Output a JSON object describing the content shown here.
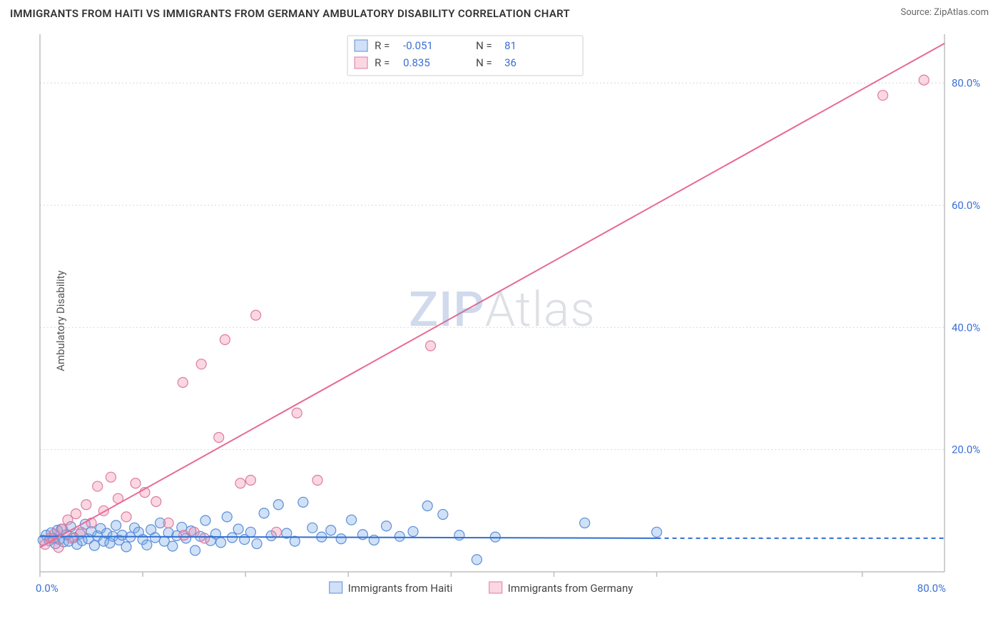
{
  "title": "IMMIGRANTS FROM HAITI VS IMMIGRANTS FROM GERMANY AMBULATORY DISABILITY CORRELATION CHART",
  "source": "Source: ZipAtlas.com",
  "ylabel": "Ambulatory Disability",
  "watermark": {
    "part1": "ZIP",
    "part2": "Atlas"
  },
  "chart": {
    "type": "scatter",
    "background_color": "#ffffff",
    "grid_color": "#d9d9d9",
    "xlim": [
      0,
      88
    ],
    "ylim": [
      0,
      88
    ],
    "x_ticks": [
      0,
      10,
      20,
      30,
      40,
      50,
      60,
      80
    ],
    "x_tick_labels": {
      "0": "0.0%",
      "80": "80.0%"
    },
    "y_ticks": [
      20,
      40,
      60,
      80
    ],
    "y_tick_labels": {
      "20": "20.0%",
      "40": "40.0%",
      "60": "60.0%",
      "80": "80.0%"
    },
    "marker_radius": 7,
    "marker_stroke_width": 1.2,
    "line_width": 2,
    "series": [
      {
        "id": "haiti",
        "label": "Immigrants from Haiti",
        "fill": "rgba(120,165,230,0.35)",
        "stroke": "#5a8fd8",
        "line_color": "#2f6fd0",
        "R": "-0.051",
        "N": "81",
        "trend": {
          "x1": 0,
          "y1": 5.8,
          "x2": 60,
          "y2": 5.5,
          "dash_after_x": 60,
          "x_end": 88
        },
        "points": [
          [
            0.3,
            5.2
          ],
          [
            0.6,
            6.0
          ],
          [
            0.9,
            5.1
          ],
          [
            1.1,
            6.4
          ],
          [
            1.3,
            5.5
          ],
          [
            1.5,
            4.6
          ],
          [
            1.7,
            6.8
          ],
          [
            1.9,
            5.3
          ],
          [
            2.1,
            7.0
          ],
          [
            2.3,
            4.9
          ],
          [
            2.6,
            6.1
          ],
          [
            2.8,
            5.0
          ],
          [
            3.0,
            7.4
          ],
          [
            3.3,
            5.6
          ],
          [
            3.6,
            4.5
          ],
          [
            3.9,
            6.2
          ],
          [
            4.1,
            5.1
          ],
          [
            4.4,
            7.8
          ],
          [
            4.7,
            5.4
          ],
          [
            5.0,
            6.6
          ],
          [
            5.3,
            4.3
          ],
          [
            5.6,
            5.9
          ],
          [
            5.9,
            7.1
          ],
          [
            6.2,
            5.0
          ],
          [
            6.5,
            6.3
          ],
          [
            6.8,
            4.7
          ],
          [
            7.1,
            5.8
          ],
          [
            7.4,
            7.6
          ],
          [
            7.7,
            5.2
          ],
          [
            8.0,
            6.0
          ],
          [
            8.4,
            4.1
          ],
          [
            8.8,
            5.7
          ],
          [
            9.2,
            7.2
          ],
          [
            9.6,
            6.5
          ],
          [
            10.0,
            5.3
          ],
          [
            10.4,
            4.4
          ],
          [
            10.8,
            6.9
          ],
          [
            11.2,
            5.6
          ],
          [
            11.7,
            8.0
          ],
          [
            12.1,
            5.0
          ],
          [
            12.5,
            6.4
          ],
          [
            12.9,
            4.2
          ],
          [
            13.3,
            5.9
          ],
          [
            13.8,
            7.3
          ],
          [
            14.2,
            5.5
          ],
          [
            14.7,
            6.7
          ],
          [
            15.1,
            3.5
          ],
          [
            15.6,
            5.8
          ],
          [
            16.1,
            8.4
          ],
          [
            16.6,
            5.1
          ],
          [
            17.1,
            6.2
          ],
          [
            17.6,
            4.8
          ],
          [
            18.2,
            9.0
          ],
          [
            18.7,
            5.6
          ],
          [
            19.3,
            7.0
          ],
          [
            19.9,
            5.3
          ],
          [
            20.5,
            6.5
          ],
          [
            21.1,
            4.6
          ],
          [
            21.8,
            9.6
          ],
          [
            22.5,
            5.9
          ],
          [
            23.2,
            11.0
          ],
          [
            24.0,
            6.3
          ],
          [
            24.8,
            5.0
          ],
          [
            25.6,
            11.4
          ],
          [
            26.5,
            7.2
          ],
          [
            27.4,
            5.7
          ],
          [
            28.3,
            6.8
          ],
          [
            29.3,
            5.4
          ],
          [
            30.3,
            8.5
          ],
          [
            31.4,
            6.1
          ],
          [
            32.5,
            5.2
          ],
          [
            33.7,
            7.5
          ],
          [
            35.0,
            5.8
          ],
          [
            36.3,
            6.6
          ],
          [
            37.7,
            10.8
          ],
          [
            39.2,
            9.4
          ],
          [
            40.8,
            6.0
          ],
          [
            42.5,
            2.0
          ],
          [
            44.3,
            5.7
          ],
          [
            53.0,
            8.0
          ],
          [
            60.0,
            6.5
          ]
        ]
      },
      {
        "id": "germany",
        "label": "Immigrants from Germany",
        "fill": "rgba(240,140,170,0.35)",
        "stroke": "#de7ba0",
        "line_color": "#e86a94",
        "R": "0.835",
        "N": "36",
        "trend": {
          "x1": 0,
          "y1": 4.0,
          "x2": 88,
          "y2": 86.5
        },
        "points": [
          [
            0.5,
            4.5
          ],
          [
            1.0,
            5.5
          ],
          [
            1.4,
            6.2
          ],
          [
            1.8,
            4.0
          ],
          [
            2.2,
            7.0
          ],
          [
            2.7,
            8.5
          ],
          [
            3.1,
            5.5
          ],
          [
            3.5,
            9.5
          ],
          [
            4.0,
            6.5
          ],
          [
            4.5,
            11.0
          ],
          [
            5.0,
            8.0
          ],
          [
            5.6,
            14.0
          ],
          [
            6.2,
            10.0
          ],
          [
            6.9,
            15.5
          ],
          [
            7.6,
            12.0
          ],
          [
            8.4,
            9.0
          ],
          [
            9.3,
            14.5
          ],
          [
            10.2,
            13.0
          ],
          [
            11.3,
            11.5
          ],
          [
            12.5,
            8.0
          ],
          [
            13.9,
            31.0
          ],
          [
            14.0,
            6.0
          ],
          [
            15.0,
            6.5
          ],
          [
            15.7,
            34.0
          ],
          [
            16.0,
            5.5
          ],
          [
            17.4,
            22.0
          ],
          [
            18.0,
            38.0
          ],
          [
            19.5,
            14.5
          ],
          [
            20.5,
            15.0
          ],
          [
            21.0,
            42.0
          ],
          [
            23.0,
            6.5
          ],
          [
            25.0,
            26.0
          ],
          [
            27.0,
            15.0
          ],
          [
            38.0,
            37.0
          ],
          [
            82.0,
            78.0
          ],
          [
            86.0,
            80.5
          ]
        ]
      }
    ]
  },
  "legend_top": {
    "rows": [
      {
        "swatch_fill": "rgba(120,165,230,0.35)",
        "swatch_stroke": "#5a8fd8",
        "R_label": "R =",
        "R": "-0.051",
        "N_label": "N =",
        "N": "81"
      },
      {
        "swatch_fill": "rgba(240,140,170,0.35)",
        "swatch_stroke": "#de7ba0",
        "R_label": "R =",
        "R": "0.835",
        "N_label": "N =",
        "N": "36"
      }
    ]
  },
  "legend_bottom": [
    {
      "swatch_fill": "rgba(120,165,230,0.35)",
      "swatch_stroke": "#5a8fd8",
      "label": "Immigrants from Haiti"
    },
    {
      "swatch_fill": "rgba(240,140,170,0.35)",
      "swatch_stroke": "#de7ba0",
      "label": "Immigrants from Germany"
    }
  ]
}
